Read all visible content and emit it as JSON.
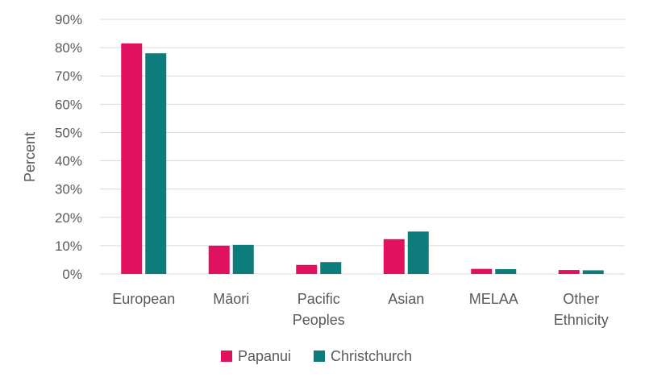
{
  "chart_data": {
    "type": "bar",
    "categories": [
      [
        "European"
      ],
      [
        "Māori"
      ],
      [
        "Pacific",
        "Peoples"
      ],
      [
        "Asian"
      ],
      [
        "MELAA"
      ],
      [
        "Other",
        "Ethnicity"
      ]
    ],
    "series": [
      {
        "name": "Papanui",
        "color": "#E0115F",
        "values": [
          81.5,
          10.0,
          3.2,
          12.3,
          1.8,
          1.4
        ]
      },
      {
        "name": "Christchurch",
        "color": "#0E7C7B",
        "values": [
          78.0,
          10.3,
          4.2,
          15.0,
          1.7,
          1.3
        ]
      }
    ],
    "ylabel": "Percent",
    "xlabel": "",
    "title": "",
    "ylim": [
      0,
      90
    ],
    "yticks": [
      0,
      10,
      20,
      30,
      40,
      50,
      60,
      70,
      80,
      90
    ],
    "ytick_format": "percent",
    "grid": true,
    "legend": "bottom-center",
    "gridline_color": "#D9D9D9"
  }
}
